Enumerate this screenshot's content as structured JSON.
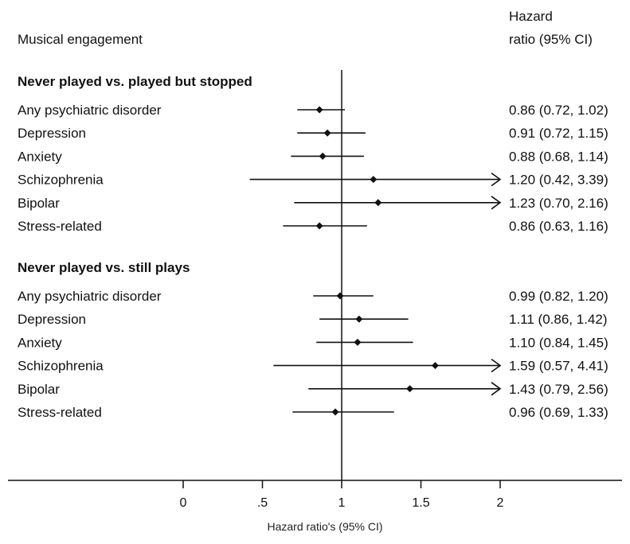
{
  "chart_data": {
    "type": "forest",
    "header": {
      "left": "Musical  engagement",
      "right_line1": "Hazard",
      "right_line2": "ratio (95% CI)"
    },
    "xlabel": "Hazard ratio's (95% CI)",
    "xlim": [
      0,
      2
    ],
    "xticks": [
      "0",
      ".5",
      "1",
      "1.5",
      "2"
    ],
    "reference_line": 1,
    "groups": [
      {
        "title": "Never played vs. played but stopped",
        "rows": [
          {
            "label": "Any psychiatric disorder",
            "hr": 0.86,
            "lo": 0.72,
            "hi": 1.02,
            "text": "0.86 (0.72, 1.02)"
          },
          {
            "label": "Depression",
            "hr": 0.91,
            "lo": 0.72,
            "hi": 1.15,
            "text": "0.91 (0.72, 1.15)"
          },
          {
            "label": "Anxiety",
            "hr": 0.88,
            "lo": 0.68,
            "hi": 1.14,
            "text": "0.88 (0.68, 1.14)"
          },
          {
            "label": "Schizophrenia",
            "hr": 1.2,
            "lo": 0.42,
            "hi": 3.39,
            "text": "1.20 (0.42, 3.39)"
          },
          {
            "label": "Bipolar",
            "hr": 1.23,
            "lo": 0.7,
            "hi": 2.16,
            "text": "1.23 (0.70, 2.16)"
          },
          {
            "label": "Stress-related",
            "hr": 0.86,
            "lo": 0.63,
            "hi": 1.16,
            "text": "0.86 (0.63, 1.16)"
          }
        ]
      },
      {
        "title": "Never played vs. still plays",
        "rows": [
          {
            "label": "Any psychiatric disorder",
            "hr": 0.99,
            "lo": 0.82,
            "hi": 1.2,
            "text": "0.99 (0.82, 1.20)"
          },
          {
            "label": "Depression",
            "hr": 1.11,
            "lo": 0.86,
            "hi": 1.42,
            "text": "1.11 (0.86, 1.42)"
          },
          {
            "label": "Anxiety",
            "hr": 1.1,
            "lo": 0.84,
            "hi": 1.45,
            "text": "1.10 (0.84, 1.45)"
          },
          {
            "label": "Schizophrenia",
            "hr": 1.59,
            "lo": 0.57,
            "hi": 4.41,
            "text": "1.59 (0.57, 4.41)"
          },
          {
            "label": "Bipolar",
            "hr": 1.43,
            "lo": 0.79,
            "hi": 2.56,
            "text": "1.43 (0.79, 2.56)"
          },
          {
            "label": "Stress-related",
            "hr": 0.96,
            "lo": 0.69,
            "hi": 1.33,
            "text": "0.96 (0.69, 1.33)"
          }
        ]
      }
    ]
  }
}
